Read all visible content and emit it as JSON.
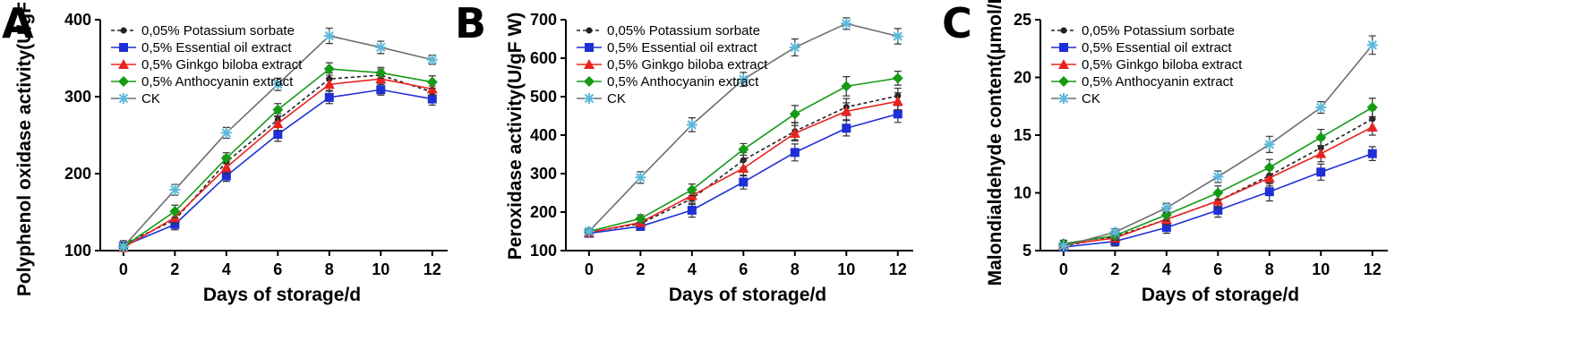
{
  "figure": {
    "series_styles": [
      {
        "name": "0,05% Potassium sorbate",
        "color": "#222222",
        "marker": "circle",
        "dash": true
      },
      {
        "name": "0,5% Essential oil extract",
        "color": "#1f2fd6",
        "marker": "square",
        "dash": false
      },
      {
        "name": "0,5% Ginkgo biloba extract",
        "color": "#e8231f",
        "marker": "triangle",
        "dash": false
      },
      {
        "name": "0,5% Anthocyanin extract",
        "color": "#169a16",
        "marker": "diamond",
        "dash": false
      },
      {
        "name": "CK",
        "color": "#6e6e6e",
        "marker": "asterisk",
        "dash": false,
        "marker_color": "#5fb8d8"
      }
    ]
  },
  "chart_data": [
    {
      "panel": "A",
      "type": "line",
      "xlabel": "Days of storage/d",
      "ylabel": "Polyphenol oxidase activity(U/gF w)",
      "x": [
        0,
        2,
        4,
        6,
        8,
        10,
        12
      ],
      "xlim": [
        -0.9,
        12.6
      ],
      "ylim": [
        100,
        400
      ],
      "yticks": [
        100,
        200,
        300,
        400
      ],
      "series": [
        {
          "name": "0,05% Potassium sorbate",
          "values": [
            108,
            140,
            215,
            270,
            323,
            328,
            306
          ],
          "errors": [
            5,
            8,
            8,
            8,
            8,
            8,
            8
          ]
        },
        {
          "name": "0,5% Essential oil extract",
          "values": [
            106,
            134,
            197,
            251,
            299,
            309,
            297
          ],
          "errors": [
            5,
            7,
            7,
            9,
            8,
            7,
            8
          ]
        },
        {
          "name": "0,5% Ginkgo biloba extract",
          "values": [
            104,
            143,
            208,
            265,
            316,
            323,
            310
          ],
          "errors": [
            5,
            8,
            8,
            9,
            8,
            7,
            8
          ]
        },
        {
          "name": "0,5% Anthocyanin extract",
          "values": [
            105,
            151,
            220,
            283,
            336,
            331,
            319
          ],
          "errors": [
            5,
            8,
            7,
            8,
            8,
            7,
            8
          ]
        },
        {
          "name": "CK",
          "values": [
            105,
            179,
            253,
            316,
            379,
            364,
            348
          ],
          "errors": [
            5,
            7,
            7,
            8,
            10,
            8,
            6
          ]
        }
      ]
    },
    {
      "panel": "B",
      "type": "line",
      "xlabel": "Days of storage/d",
      "ylabel": "Peroxidase activity(U/gF W)",
      "x": [
        0,
        2,
        4,
        6,
        8,
        10,
        12
      ],
      "xlim": [
        -0.9,
        12.6
      ],
      "ylim": [
        100,
        700
      ],
      "yticks": [
        100,
        200,
        300,
        400,
        500,
        600,
        700
      ],
      "series": [
        {
          "name": "0,05% Potassium sorbate",
          "values": [
            148,
            170,
            235,
            335,
            410,
            473,
            502
          ],
          "errors": [
            8,
            10,
            15,
            20,
            22,
            22,
            20
          ]
        },
        {
          "name": "0,5% Essential oil extract",
          "values": [
            145,
            163,
            205,
            278,
            355,
            418,
            455
          ],
          "errors": [
            8,
            10,
            18,
            18,
            22,
            20,
            22
          ]
        },
        {
          "name": "0,5% Ginkgo biloba extract",
          "values": [
            147,
            173,
            243,
            314,
            405,
            462,
            488
          ],
          "errors": [
            8,
            10,
            15,
            20,
            20,
            22,
            22
          ]
        },
        {
          "name": "0,5% Anthocyanin extract",
          "values": [
            150,
            183,
            258,
            363,
            455,
            527,
            548
          ],
          "errors": [
            8,
            10,
            15,
            15,
            22,
            25,
            18
          ]
        },
        {
          "name": "CK",
          "values": [
            150,
            290,
            427,
            545,
            628,
            690,
            657
          ],
          "errors": [
            8,
            15,
            18,
            18,
            22,
            15,
            20
          ]
        }
      ]
    },
    {
      "panel": "C",
      "type": "line",
      "xlabel": "Days of storage/d",
      "ylabel": "Malondialdehyde content(μmol/L)",
      "x": [
        0,
        2,
        4,
        6,
        8,
        10,
        12
      ],
      "xlim": [
        -0.9,
        12.6
      ],
      "ylim": [
        5,
        25
      ],
      "yticks": [
        5,
        10,
        15,
        20,
        25
      ],
      "series": [
        {
          "name": "0,05% Potassium sorbate",
          "values": [
            5.4,
            6.2,
            7.7,
            9.3,
            11.5,
            13.9,
            16.4
          ],
          "errors": [
            0.3,
            0.4,
            0.5,
            0.6,
            0.7,
            0.7,
            0.8
          ]
        },
        {
          "name": "0,5% Essential oil extract",
          "values": [
            5.3,
            5.8,
            7.0,
            8.5,
            10.1,
            11.8,
            13.4
          ],
          "errors": [
            0.3,
            0.4,
            0.5,
            0.6,
            0.8,
            0.7,
            0.6
          ]
        },
        {
          "name": "0,5% Ginkgo biloba extract",
          "values": [
            5.5,
            6.1,
            7.7,
            9.3,
            11.3,
            13.4,
            15.7
          ],
          "errors": [
            0.3,
            0.4,
            0.5,
            0.6,
            0.7,
            0.7,
            0.7
          ]
        },
        {
          "name": "0,5% Anthocyanin extract",
          "values": [
            5.6,
            6.3,
            8.1,
            10.0,
            12.2,
            14.8,
            17.4
          ],
          "errors": [
            0.3,
            0.4,
            0.5,
            0.6,
            0.7,
            0.7,
            0.8
          ]
        },
        {
          "name": "CK",
          "values": [
            5.4,
            6.6,
            8.7,
            11.4,
            14.2,
            17.4,
            22.8
          ],
          "errors": [
            0.3,
            0.3,
            0.4,
            0.5,
            0.7,
            0.5,
            0.8
          ]
        }
      ]
    }
  ]
}
